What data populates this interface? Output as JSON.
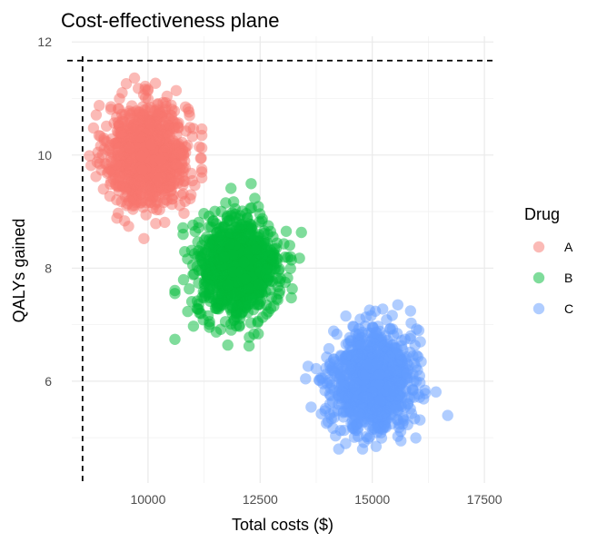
{
  "chart_data": {
    "type": "scatter",
    "title": "Cost-effectiveness plane",
    "xlabel": "Total costs ($)",
    "ylabel": "QALYs gained",
    "xlim": [
      8300,
      17700
    ],
    "ylim": [
      4.2,
      12.1
    ],
    "x_ticks": [
      10000,
      12500,
      15000,
      17500
    ],
    "x_tick_labels": [
      "10000",
      "12500",
      "15000",
      "17500"
    ],
    "y_ticks": [
      6,
      8,
      10,
      12
    ],
    "y_tick_labels": [
      "6",
      "8",
      "10",
      "12"
    ],
    "grid": true,
    "legend": {
      "title": "Drug",
      "position": "right"
    },
    "reference_lines": [
      {
        "orientation": "vertical",
        "x": 8540,
        "style": "dashed"
      },
      {
        "orientation": "horizontal",
        "y": 11.67,
        "style": "dashed"
      }
    ],
    "series": [
      {
        "name": "A",
        "color": "#F8766D",
        "n_points": 1000,
        "mean_x": 10000,
        "sd_x": 450,
        "mean_y": 10.0,
        "sd_y": 0.45,
        "range_x": [
          8650,
          11200
        ],
        "range_y": [
          8.2,
          11.7
        ]
      },
      {
        "name": "B",
        "color": "#00BA38",
        "n_points": 1000,
        "mean_x": 12000,
        "sd_x": 450,
        "mean_y": 8.0,
        "sd_y": 0.45,
        "range_x": [
          10600,
          13800
        ],
        "range_y": [
          6.5,
          9.7
        ]
      },
      {
        "name": "C",
        "color": "#619CFF",
        "n_points": 1000,
        "mean_x": 15000,
        "sd_x": 450,
        "mean_y": 6.0,
        "sd_y": 0.45,
        "range_x": [
          13400,
          17150
        ],
        "range_y": [
          4.8,
          7.5
        ]
      }
    ]
  }
}
